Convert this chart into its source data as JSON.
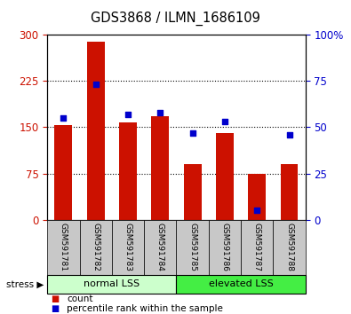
{
  "title": "GDS3868 / ILMN_1686109",
  "samples": [
    "GSM591781",
    "GSM591782",
    "GSM591783",
    "GSM591784",
    "GSM591785",
    "GSM591786",
    "GSM591787",
    "GSM591788"
  ],
  "counts": [
    153,
    288,
    158,
    168,
    90,
    140,
    75,
    90
  ],
  "percentiles": [
    55,
    73,
    57,
    58,
    47,
    53,
    5,
    46
  ],
  "ylim_left": [
    0,
    300
  ],
  "ylim_right": [
    0,
    100
  ],
  "yticks_left": [
    0,
    75,
    150,
    225,
    300
  ],
  "yticks_right": [
    0,
    25,
    50,
    75,
    100
  ],
  "ytick_labels_right": [
    "0",
    "25",
    "50",
    "75",
    "100%"
  ],
  "group_labels": [
    "normal LSS",
    "elevated LSS"
  ],
  "group_ranges": [
    [
      0,
      4
    ],
    [
      4,
      8
    ]
  ],
  "group_color_light": "#ccffcc",
  "group_color_dark": "#44ee44",
  "bar_color": "#cc1100",
  "dot_color": "#0000cc",
  "bar_width": 0.55,
  "stress_label": "stress",
  "legend_entries": [
    "count",
    "percentile rank within the sample"
  ],
  "background_color": "#ffffff",
  "tick_label_color_left": "#cc1100",
  "tick_label_color_right": "#0000cc",
  "label_fontsize": 8,
  "tick_fontsize": 8.5
}
